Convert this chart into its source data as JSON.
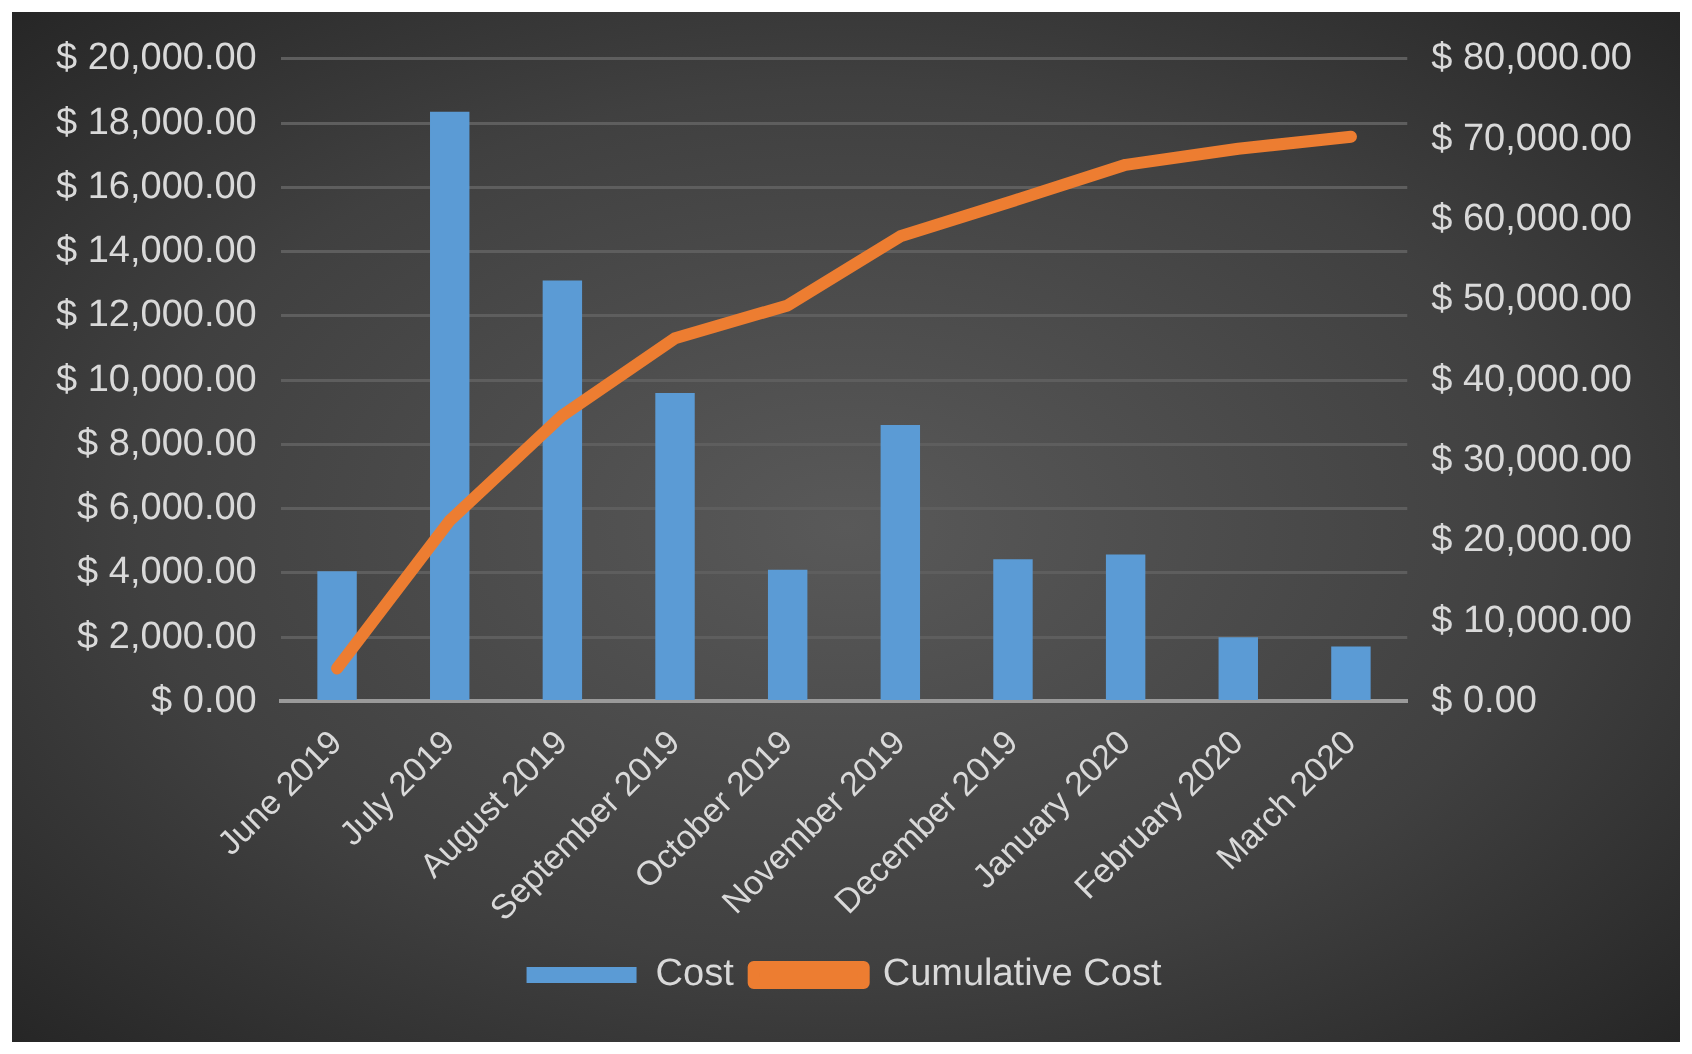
{
  "chart_data": {
    "type": "bar",
    "categories": [
      "June 2019",
      "July 2019",
      "August 2019",
      "September 2019",
      "October 2019",
      "November 2019",
      "December 2019",
      "January 2020",
      "February 2020",
      "March 2020"
    ],
    "series": [
      {
        "name": "Cost",
        "color": "#5b9bd5",
        "values": [
          4050,
          18350,
          13100,
          9600,
          4100,
          8600,
          4420,
          4570,
          2000,
          1710
        ]
      },
      {
        "name": "Cumulative Cost",
        "type": "line",
        "axis": "y2",
        "color": "#ed7d31",
        "values": [
          4100,
          22500,
          35600,
          45200,
          49300,
          57900,
          62300,
          66800,
          68800,
          70300
        ]
      }
    ],
    "ylim": [
      0,
      20000
    ],
    "yticks": [
      {
        "value": 0,
        "label": "$ 0.00"
      },
      {
        "value": 2000,
        "label": "$ 2,000.00"
      },
      {
        "value": 4000,
        "label": "$ 4,000.00"
      },
      {
        "value": 6000,
        "label": "$ 6,000.00"
      },
      {
        "value": 8000,
        "label": "$ 8,000.00"
      },
      {
        "value": 10000,
        "label": "$ 10,000.00"
      },
      {
        "value": 12000,
        "label": "$ 12,000.00"
      },
      {
        "value": 14000,
        "label": "$ 14,000.00"
      },
      {
        "value": 16000,
        "label": "$ 16,000.00"
      },
      {
        "value": 18000,
        "label": "$ 18,000.00"
      },
      {
        "value": 20000,
        "label": "$ 20,000.00"
      }
    ],
    "y2lim": [
      0,
      80000
    ],
    "y2ticks": [
      {
        "value": 0,
        "label": "$ 0.00"
      },
      {
        "value": 10000,
        "label": "$ 10,000.00"
      },
      {
        "value": 20000,
        "label": "$ 20,000.00"
      },
      {
        "value": 30000,
        "label": "$ 30,000.00"
      },
      {
        "value": 40000,
        "label": "$ 40,000.00"
      },
      {
        "value": 50000,
        "label": "$ 50,000.00"
      },
      {
        "value": 60000,
        "label": "$ 60,000.00"
      },
      {
        "value": 70000,
        "label": "$ 70,000.00"
      },
      {
        "value": 80000,
        "label": "$ 80,000.00"
      }
    ],
    "grid": "y",
    "legend": "bottom",
    "marker": "none"
  }
}
